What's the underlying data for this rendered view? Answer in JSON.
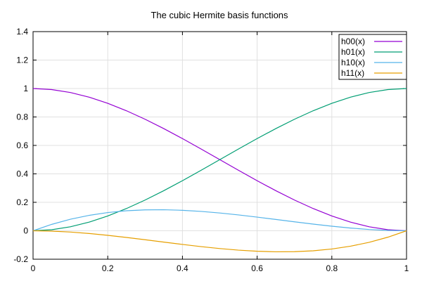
{
  "chart_data": {
    "type": "line",
    "title": "The cubic Hermite basis functions",
    "xlabel": "",
    "ylabel": "",
    "xlim": [
      0,
      1
    ],
    "ylim": [
      -0.2,
      1.4
    ],
    "x_ticks": [
      0,
      0.2,
      0.4,
      0.6,
      0.8,
      1
    ],
    "x_tick_labels": [
      "0",
      "0.2",
      "0.4",
      "0.6",
      "0.8",
      "1"
    ],
    "y_ticks": [
      -0.2,
      0,
      0.2,
      0.4,
      0.6,
      0.8,
      1,
      1.2,
      1.4
    ],
    "y_tick_labels": [
      "-0.2",
      "0",
      "0.2",
      "0.4",
      "0.6",
      "0.8",
      "1",
      "1.2",
      "1.4"
    ],
    "grid": true,
    "legend_position": "top-right",
    "x": [
      0,
      0.05,
      0.1,
      0.15,
      0.2,
      0.25,
      0.3,
      0.35,
      0.4,
      0.45,
      0.5,
      0.55,
      0.6,
      0.65,
      0.7,
      0.75,
      0.8,
      0.85,
      0.9,
      0.95,
      1
    ],
    "series": [
      {
        "name": "h00(x)",
        "color": "#9400d3",
        "values": [
          1,
          0.99275,
          0.972,
          0.93925,
          0.896,
          0.84375,
          0.784,
          0.71825,
          0.648,
          0.57475,
          0.5,
          0.42525,
          0.352,
          0.28175,
          0.216,
          0.15625,
          0.104,
          0.06075,
          0.028,
          0.00725,
          0
        ]
      },
      {
        "name": "h01(x)",
        "color": "#009e73",
        "values": [
          0,
          0.00725,
          0.028,
          0.06075,
          0.104,
          0.15625,
          0.216,
          0.28175,
          0.352,
          0.42525,
          0.5,
          0.57475,
          0.648,
          0.71825,
          0.784,
          0.84375,
          0.896,
          0.93925,
          0.972,
          0.99275,
          1
        ]
      },
      {
        "name": "h10(x)",
        "color": "#56b4e9",
        "values": [
          0,
          0.045125,
          0.081,
          0.108375,
          0.128,
          0.140625,
          0.147,
          0.147875,
          0.144,
          0.136125,
          0.125,
          0.111375,
          0.096,
          0.079625,
          0.063,
          0.046875,
          0.032,
          0.019125,
          0.009,
          0.002375,
          0
        ]
      },
      {
        "name": "h11(x)",
        "color": "#e69f00",
        "values": [
          0,
          -0.002375,
          -0.009,
          -0.019125,
          -0.032,
          -0.046875,
          -0.063,
          -0.079625,
          -0.096,
          -0.111375,
          -0.125,
          -0.136125,
          -0.144,
          -0.147875,
          -0.147,
          -0.140625,
          -0.128,
          -0.108375,
          -0.081,
          -0.045125,
          0
        ]
      }
    ]
  }
}
